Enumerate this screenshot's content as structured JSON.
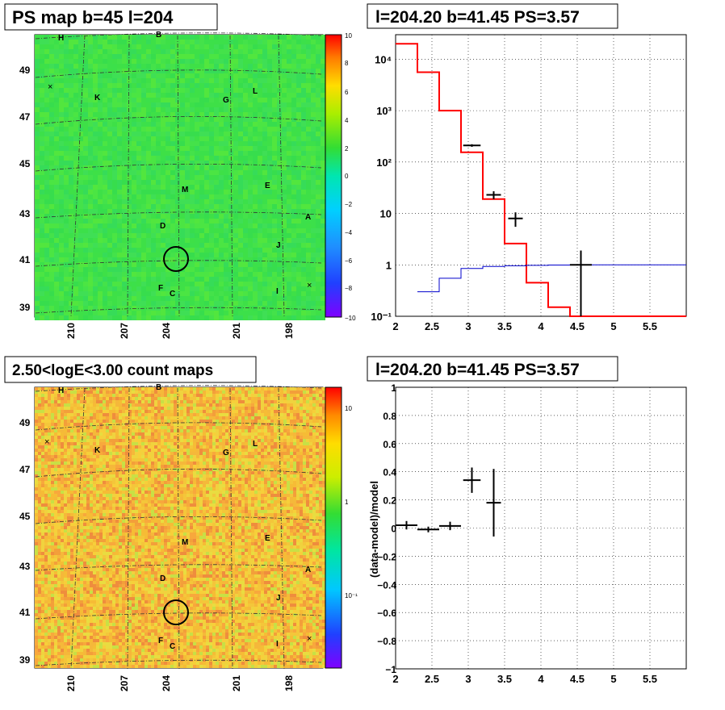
{
  "panels": {
    "ps_map": {
      "title": "PS map b=45 l=204",
      "colorbar_ticks": [
        "10",
        "8",
        "6",
        "4",
        "2",
        "0",
        "−2",
        "−4",
        "−6",
        "−8",
        "−10"
      ],
      "y_ticks": [
        "49",
        "47",
        "45",
        "43",
        "41",
        "39"
      ],
      "x_ticks": [
        "210",
        "207",
        "204",
        "201",
        "198"
      ],
      "labels": [
        "H",
        "B",
        "K",
        "G",
        "L",
        "M",
        "E",
        "D",
        "A",
        "J",
        "F",
        "C",
        "I"
      ]
    },
    "count_map": {
      "title": "2.50<logE<3.00 count maps",
      "colorbar_ticks": [
        "10",
        "1",
        "10⁻¹"
      ],
      "y_ticks": [
        "49",
        "47",
        "45",
        "43",
        "41",
        "39"
      ],
      "x_ticks": [
        "210",
        "207",
        "204",
        "201",
        "198"
      ],
      "labels": [
        "H",
        "B",
        "K",
        "G",
        "L",
        "M",
        "E",
        "D",
        "A",
        "J",
        "F",
        "C",
        "I"
      ]
    },
    "spectrum": {
      "title": "l=204.20 b=41.45 PS=3.57"
    },
    "residual": {
      "title": "l=204.20 b=41.45 PS=3.57",
      "ylabel": "(data-model)/model"
    }
  },
  "chart_data": [
    {
      "type": "heatmap",
      "title": "PS map b=45 l=204",
      "xlabel": "",
      "ylabel": "",
      "x_ticks": [
        210,
        207,
        204,
        201,
        198
      ],
      "y_ticks": [
        49,
        47,
        45,
        43,
        41,
        39
      ],
      "colorbar_range": [
        -10,
        10
      ],
      "annotations": [
        "H",
        "B",
        "K",
        "G",
        "L",
        "M",
        "E",
        "D",
        "A",
        "J",
        "F",
        "C",
        "I"
      ]
    },
    {
      "type": "line",
      "title": "l=204.20 b=41.45 PS=3.57",
      "y_scale": "log",
      "xlim": [
        2,
        6
      ],
      "ylim": [
        0.1,
        30000
      ],
      "x_ticks": [
        2,
        2.5,
        3,
        3.5,
        4,
        4.5,
        5,
        5.5
      ],
      "y_ticks": [
        "10⁻¹",
        "1",
        "10",
        "10²",
        "10³",
        "10⁴"
      ],
      "series": [
        {
          "style": "red-step",
          "color": "#ff0000",
          "bins": [
            [
              2.0,
              2.3,
              20000
            ],
            [
              2.3,
              2.6,
              5600
            ],
            [
              2.6,
              2.9,
              1000
            ],
            [
              2.9,
              3.2,
              155
            ],
            [
              3.2,
              3.5,
              19
            ],
            [
              3.5,
              3.8,
              2.6
            ],
            [
              3.8,
              4.1,
              0.45
            ],
            [
              4.1,
              4.4,
              0.15
            ],
            [
              4.4,
              4.7,
              0.09
            ],
            [
              4.7,
              6.0,
              0.1
            ]
          ]
        },
        {
          "style": "blue-step",
          "color": "#0000cc",
          "bins": [
            [
              2.3,
              2.6,
              0.3
            ],
            [
              2.6,
              2.9,
              0.55
            ],
            [
              2.9,
              3.2,
              0.85
            ],
            [
              3.2,
              3.5,
              0.93
            ],
            [
              3.5,
              3.8,
              0.96
            ],
            [
              3.8,
              4.1,
              0.98
            ],
            [
              4.1,
              4.4,
              0.99
            ],
            [
              4.4,
              4.7,
              1.0
            ],
            [
              4.7,
              6.0,
              1.0
            ]
          ]
        },
        {
          "style": "data-points",
          "color": "#000000",
          "points": [
            [
              3.05,
              210,
              0.12,
              12
            ],
            [
              3.35,
              23,
              0.1,
              4
            ],
            [
              3.65,
              8,
              0.1,
              2.5
            ],
            [
              4.55,
              1.0,
              0.15,
              0.9
            ]
          ]
        }
      ]
    },
    {
      "type": "heatmap",
      "title": "2.50<logE<3.00 count maps",
      "x_ticks": [
        210,
        207,
        204,
        201,
        198
      ],
      "y_ticks": [
        49,
        47,
        45,
        43,
        41,
        39
      ],
      "colorbar_ticks": [
        "10",
        "1",
        "10⁻¹"
      ],
      "annotations": [
        "H",
        "B",
        "K",
        "G",
        "L",
        "M",
        "E",
        "D",
        "A",
        "J",
        "F",
        "C",
        "I"
      ]
    },
    {
      "type": "scatter",
      "title": "l=204.20 b=41.45 PS=3.57",
      "ylabel": "(data-model)/model",
      "xlim": [
        2,
        6
      ],
      "ylim": [
        -1,
        1
      ],
      "x_ticks": [
        2,
        2.5,
        3,
        3.5,
        4,
        4.5,
        5,
        5.5
      ],
      "y_ticks": [
        -1,
        -0.8,
        -0.6,
        -0.4,
        -0.2,
        0,
        0.2,
        0.4,
        0.6,
        0.8,
        1
      ],
      "points": [
        [
          2.15,
          0.02,
          0.15,
          0.03
        ],
        [
          2.45,
          -0.01,
          0.15,
          0.02
        ],
        [
          2.75,
          0.015,
          0.15,
          0.03
        ],
        [
          3.05,
          0.34,
          0.12,
          0.09
        ],
        [
          3.35,
          0.18,
          0.1,
          0.24
        ]
      ]
    }
  ]
}
